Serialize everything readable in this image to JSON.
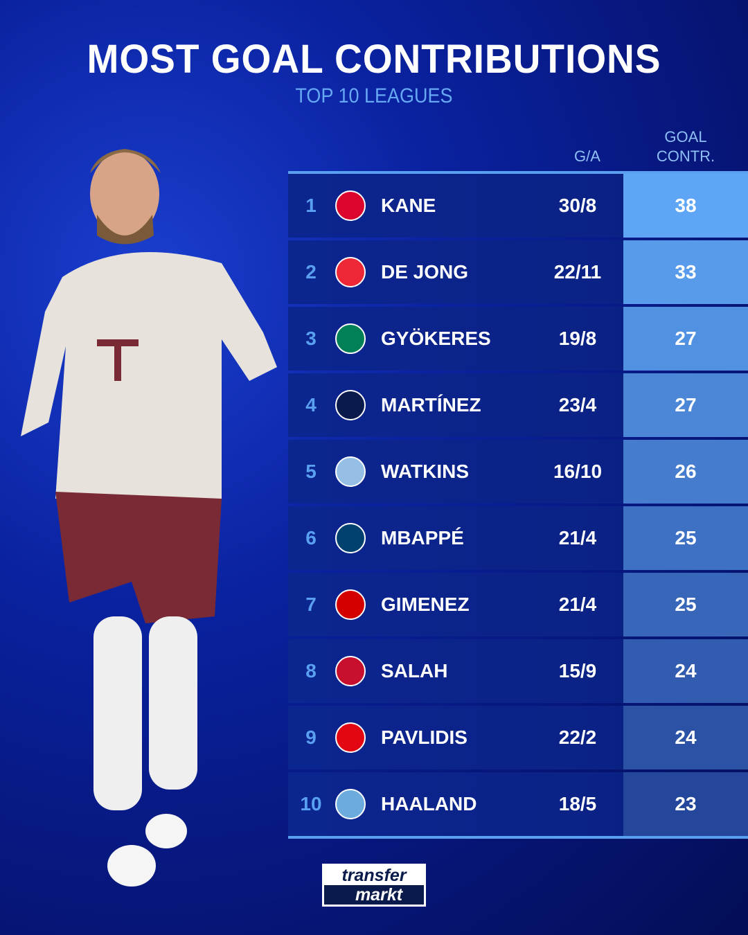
{
  "title": "MOST GOAL CONTRIBUTIONS",
  "subtitle": "TOP 10 LEAGUES",
  "brand": "transfermarkt",
  "colors": {
    "contr_top": "#5ea6f5",
    "contr_bottom": "#25479b",
    "rank": "#5aa0f0"
  },
  "chart_data": {
    "type": "table",
    "columns": [
      "",
      "",
      "",
      "G/A",
      "GOAL CONTR."
    ],
    "header_ga": "G/A",
    "header_gc_1": "GOAL",
    "header_gc_2": "CONTR.",
    "rows": [
      {
        "rank": "1",
        "club": "bayern-munich-crest",
        "crest_color": "#dc052d",
        "name": "KANE",
        "ga": "30/8",
        "gc": "38"
      },
      {
        "rank": "2",
        "club": "psv-crest",
        "crest_color": "#ee2737",
        "name": "DE JONG",
        "ga": "22/11",
        "gc": "33"
      },
      {
        "rank": "3",
        "club": "sporting-cp-crest",
        "crest_color": "#008057",
        "name": "GYÖKERES",
        "ga": "19/8",
        "gc": "27"
      },
      {
        "rank": "4",
        "club": "inter-crest",
        "crest_color": "#0a1a4a",
        "name": "MARTÍNEZ",
        "ga": "23/4",
        "gc": "27"
      },
      {
        "rank": "5",
        "club": "aston-villa-crest",
        "crest_color": "#95bfe5",
        "name": "WATKINS",
        "ga": "16/10",
        "gc": "26"
      },
      {
        "rank": "6",
        "club": "psg-crest",
        "crest_color": "#004170",
        "name": "MBAPPÉ",
        "ga": "21/4",
        "gc": "25"
      },
      {
        "rank": "7",
        "club": "feyenoord-crest",
        "crest_color": "#d40000",
        "name": "GIMENEZ",
        "ga": "21/4",
        "gc": "25"
      },
      {
        "rank": "8",
        "club": "liverpool-crest",
        "crest_color": "#c8102e",
        "name": "SALAH",
        "ga": "15/9",
        "gc": "24"
      },
      {
        "rank": "9",
        "club": "az-alkmaar-crest",
        "crest_color": "#e30613",
        "name": "PAVLIDIS",
        "ga": "22/2",
        "gc": "24"
      },
      {
        "rank": "10",
        "club": "manchester-city-crest",
        "crest_color": "#6cabdd",
        "name": "HAALAND",
        "ga": "18/5",
        "gc": "23"
      }
    ]
  }
}
